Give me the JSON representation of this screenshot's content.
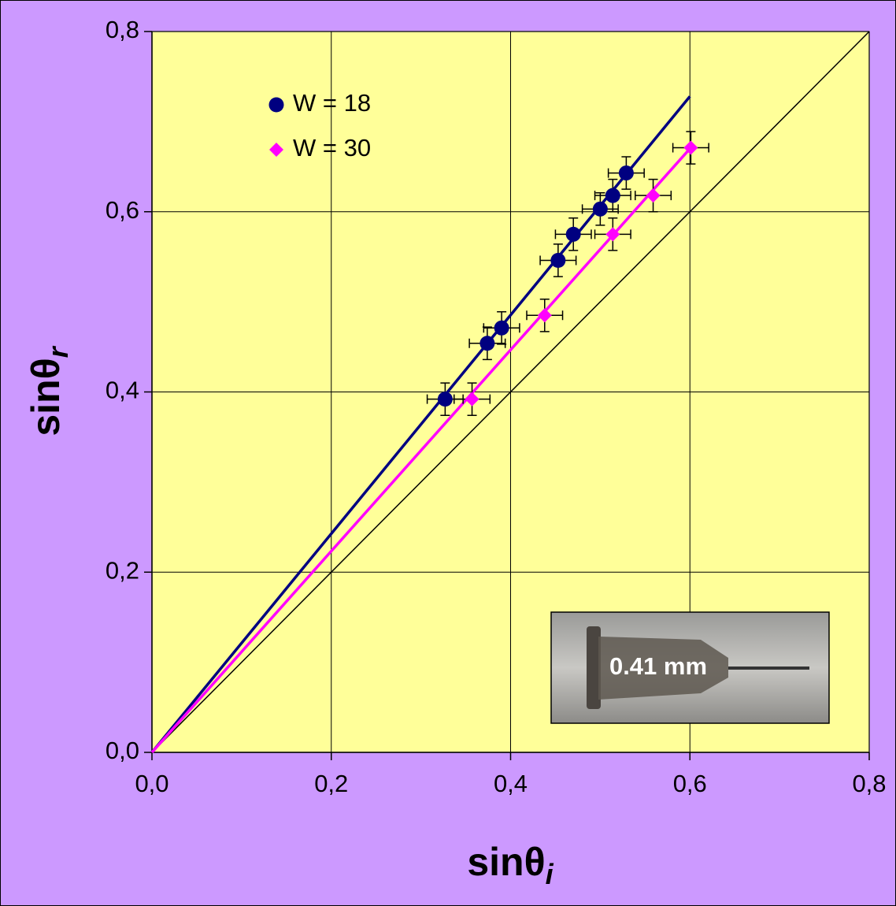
{
  "chart_data": {
    "type": "scatter",
    "x_label": "sinθ",
    "x_label_sub": "i",
    "y_label": "sinθ",
    "y_label_sub": "r",
    "xlim": [
      0,
      0.8
    ],
    "ylim": [
      0,
      0.8
    ],
    "xticks": [
      {
        "value": 0,
        "label": "0,0"
      },
      {
        "value": 0.2,
        "label": "0,2"
      },
      {
        "value": 0.4,
        "label": "0,4"
      },
      {
        "value": 0.6,
        "label": "0,6"
      },
      {
        "value": 0.8,
        "label": "0,8"
      }
    ],
    "yticks": [
      {
        "value": 0,
        "label": "0,0"
      },
      {
        "value": 0.2,
        "label": "0,2"
      },
      {
        "value": 0.4,
        "label": "0,4"
      },
      {
        "value": 0.6,
        "label": "0,6"
      },
      {
        "value": 0.8,
        "label": "0,8"
      }
    ],
    "grid": true,
    "series": [
      {
        "name": "W = 18",
        "color": "#000080",
        "marker": "circle",
        "x": [
          0.327,
          0.374,
          0.39,
          0.453,
          0.47,
          0.5,
          0.514,
          0.529
        ],
        "values": [
          0.392,
          0.454,
          0.471,
          0.546,
          0.575,
          0.603,
          0.618,
          0.643
        ],
        "x_errors": [
          0.02,
          0.02,
          0.02,
          0.02,
          0.02,
          0.02,
          0.02,
          0.02
        ],
        "y_errors": [
          0.018,
          0.018,
          0.018,
          0.018,
          0.018,
          0.018,
          0.018,
          0.018
        ],
        "fit": {
          "x": [
            0,
            0.6
          ],
          "values": [
            0,
            0.728
          ]
        }
      },
      {
        "name": "W = 30",
        "color": "#ff00ff",
        "marker": "diamond",
        "x": [
          0.357,
          0.438,
          0.514,
          0.559,
          0.601
        ],
        "values": [
          0.392,
          0.485,
          0.575,
          0.618,
          0.671
        ],
        "x_errors": [
          0.02,
          0.02,
          0.02,
          0.02,
          0.02
        ],
        "y_errors": [
          0.018,
          0.018,
          0.018,
          0.018,
          0.018
        ],
        "fit": {
          "x": [
            0,
            0.6
          ],
          "values": [
            0,
            0.67
          ]
        }
      }
    ],
    "reference_line": {
      "x": [
        0,
        0.8
      ],
      "values": [
        0,
        0.8
      ],
      "color": "#000000"
    },
    "inset_label": "0.41 mm"
  }
}
